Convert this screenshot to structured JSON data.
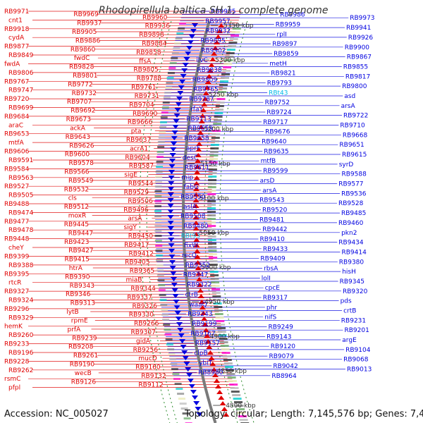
{
  "title": "Rhodopirellula baltica SH 1, complete genome",
  "footer": {
    "accession": "Accession: NC_005027",
    "summary": "Topology: circular; Length: 7,145,576 bp; Genes: 7,405"
  },
  "colors": {
    "forward": "#e00000",
    "reverse": "#0000e0",
    "rna": "#00b8e8",
    "backbone": "#7a7a7a",
    "tick": "#2a8a2a"
  },
  "scale_ticks": [
    "5350 kbp",
    "5300 kbp",
    "5250 kbp",
    "5200 kbp",
    "5150 kbp",
    "5100 kbp",
    "5050 kbp",
    "5000 kbp",
    "4950 kbp",
    "4900 kbp",
    "4850 kbp",
    "4800 kbp"
  ],
  "left_labels": [
    "RB9971",
    "RB9969",
    "RB9960",
    "cnt1",
    "RB9937",
    "RB9936",
    "RB9918",
    "RB9905",
    "RB9898",
    "cydA",
    "RB9886",
    "RB9884",
    "RB9877",
    "RB9860",
    "RB9858",
    "RB9849",
    "fwdC",
    "ffsA",
    "fwdA",
    "RB9828",
    "RB9805",
    "RB9806",
    "RB9801",
    "RB9788",
    "RB9767",
    "RB9772",
    "RB9761",
    "RB9747",
    "RB9732",
    "RB9731",
    "RB9720",
    "RB9707",
    "RB9704",
    "RB9699",
    "RB9692",
    "RB9690",
    "RB9684",
    "RB9673",
    "RB9666",
    "araC",
    "ackA",
    "pta",
    "RB9653",
    "RB9643",
    "RB9637",
    "mtfA",
    "RB9626",
    "acrA1",
    "RB9606",
    "RB9600",
    "RB9604",
    "RB9591",
    "RB9578",
    "RB9587",
    "RB9584",
    "RB9566",
    "sigE",
    "RB9563",
    "RB9549",
    "RB9544",
    "RB9527",
    "RB9532",
    "RB9529",
    "RB9505",
    "cls",
    "RB9506",
    "RB9488",
    "RB9512",
    "RB9496",
    "RB9474",
    "moxR",
    "arsA",
    "RB9477",
    "RB9445",
    "sigY",
    "RB9478",
    "RB9447",
    "RB9450",
    "RB9448",
    "RB9423",
    "RB9417",
    "cheY",
    "RB9427",
    "RB9412",
    "RB9399",
    "RB9415",
    "RB9405",
    "RB9388",
    "htrA",
    "RB9365",
    "RB9395",
    "RB9390",
    "miaB",
    "rtcR",
    "RB9343",
    "RB9344",
    "RB9327",
    "RB9346",
    "RB9337",
    "RB9324",
    "RB9313",
    "RB9326",
    "RB9296",
    "lytB",
    "RB9330",
    "RB9329",
    "rpmE",
    "RB9266",
    "hemK",
    "prfA",
    "RB9307",
    "RB9260",
    "RB9239",
    "gidA",
    "RB9233",
    "RB9208",
    "RB9256",
    "RB9196",
    "RB9261",
    "mucD",
    "RB9228",
    "RB9190",
    "RB9160",
    "RB9262",
    "wecB",
    "RB9132",
    "rsmC",
    "RB9126",
    "RB9112",
    "pfpl"
  ],
  "right_labels": [
    "RB9985",
    "RB9986",
    "RB9973",
    "RB9957",
    "RB9959",
    "RB9941",
    "RB9932",
    "rplI",
    "RB9926",
    "RB9895",
    "RB9897",
    "RB9900",
    "RB9902",
    "RB9859",
    "RB9867",
    "ilvC",
    "metH",
    "RB9855",
    "RB9838",
    "RB9821",
    "RB9817",
    "RB9809",
    "RB9793",
    "RB9800",
    "RB9765",
    "RBt43",
    "asd",
    "RB9787",
    "RB9752",
    "arsA",
    "rfaY",
    "RB9724",
    "RB9722",
    "RB9713",
    "RB9717",
    "RB9710",
    "RB9659",
    "RB9676",
    "RB9668",
    "RB9658",
    "RB9640",
    "RB9651",
    "aprF",
    "RB9635",
    "RB9615",
    "desC",
    "mtfB",
    "syrD",
    "RB9611",
    "RB9599",
    "RB9588",
    "mip",
    "arsD",
    "RB9577",
    "fabG",
    "arsA",
    "RB9536",
    "RB9550",
    "RB9543",
    "RB9528",
    "aslA",
    "RB9520",
    "RB9485",
    "RB9508",
    "RB9481",
    "RB9460",
    "RB9480",
    "RB9442",
    "pkn2",
    "RBt93",
    "RB9410",
    "RB9434",
    "fixW",
    "RB9433",
    "RB9414",
    "recQ",
    "RB9409",
    "RB9380",
    "RB9352",
    "rbsA",
    "hisH",
    "RB9347",
    "lolI",
    "RB9345",
    "RB9322",
    "cpcE",
    "RB9320",
    "ctrB",
    "RB9317",
    "pds",
    "waaQ",
    "phr",
    "crtB",
    "RB9243",
    "nifS",
    "RB9231",
    "RB9199",
    "RB9249",
    "RB9201",
    "RB9167",
    "RB9143",
    "argE",
    "RB9157",
    "RB9120",
    "RB9104",
    "clpB",
    "RB9079",
    "RB9068",
    "ybiT",
    "RB9042",
    "RB9013",
    "RB8980",
    "RB8964"
  ]
}
